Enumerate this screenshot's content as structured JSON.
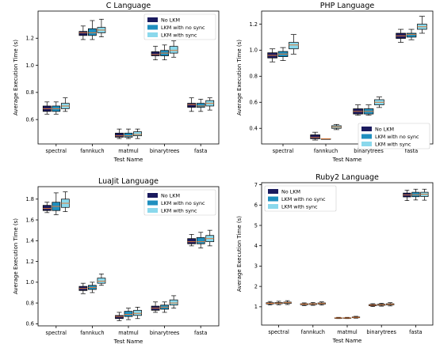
{
  "colors": {
    "no_lkm": "#1a1a5e",
    "lkm_no_sync": "#1f8fbf",
    "lkm_sync": "#8ad8ec",
    "median": "#e07b39",
    "axis": "#000000"
  },
  "chart_data": [
    {
      "type": "box",
      "title": "C Language",
      "xlabel": "Test Name",
      "ylabel": "Average Execution Time (s)",
      "categories": [
        "spectral",
        "fannkuch",
        "matmul",
        "binarytrees",
        "fasta"
      ],
      "ylim": [
        0.42,
        1.4
      ],
      "yticks": [
        0.6,
        0.8,
        1.0,
        1.2
      ],
      "ytick_labels": [
        "0.6",
        "0.8",
        "1.0",
        "1.2"
      ],
      "legend_position": "top-right",
      "series": [
        {
          "name": "No LKM",
          "color": "#1a1a5e",
          "stats": [
            {
              "min": 0.64,
              "q1": 0.66,
              "median": 0.68,
              "q3": 0.7,
              "max": 0.73
            },
            {
              "min": 1.19,
              "q1": 1.22,
              "median": 1.24,
              "q3": 1.25,
              "max": 1.29
            },
            {
              "min": 0.46,
              "q1": 0.47,
              "median": 0.48,
              "q3": 0.5,
              "max": 0.53
            },
            {
              "min": 1.04,
              "q1": 1.07,
              "median": 1.08,
              "q3": 1.1,
              "max": 1.14
            },
            {
              "min": 0.66,
              "q1": 0.69,
              "median": 0.71,
              "q3": 0.72,
              "max": 0.76
            }
          ]
        },
        {
          "name": "LKM with no sync",
          "color": "#1f8fbf",
          "stats": [
            {
              "min": 0.64,
              "q1": 0.66,
              "median": 0.68,
              "q3": 0.7,
              "max": 0.73
            },
            {
              "min": 1.19,
              "q1": 1.22,
              "median": 1.24,
              "q3": 1.27,
              "max": 1.33
            },
            {
              "min": 0.46,
              "q1": 0.47,
              "median": 0.48,
              "q3": 0.5,
              "max": 0.53
            },
            {
              "min": 1.04,
              "q1": 1.07,
              "median": 1.09,
              "q3": 1.11,
              "max": 1.15
            },
            {
              "min": 0.66,
              "q1": 0.69,
              "median": 0.7,
              "q3": 0.72,
              "max": 0.75
            }
          ]
        },
        {
          "name": "LKM with sync",
          "color": "#8ad8ec",
          "stats": [
            {
              "min": 0.66,
              "q1": 0.68,
              "median": 0.7,
              "q3": 0.72,
              "max": 0.76
            },
            {
              "min": 1.21,
              "q1": 1.24,
              "median": 1.26,
              "q3": 1.28,
              "max": 1.34
            },
            {
              "min": 0.46,
              "q1": 0.48,
              "median": 0.49,
              "q3": 0.51,
              "max": 0.53
            },
            {
              "min": 1.06,
              "q1": 1.09,
              "median": 1.11,
              "q3": 1.14,
              "max": 1.18
            },
            {
              "min": 0.67,
              "q1": 0.7,
              "median": 0.72,
              "q3": 0.74,
              "max": 0.76
            }
          ]
        }
      ]
    },
    {
      "type": "box",
      "title": "PHP Language",
      "xlabel": "Test Name",
      "ylabel": "Average Execution Time (s)",
      "categories": [
        "spectral",
        "fannkuch",
        "binarytrees",
        "fasta"
      ],
      "ylim": [
        0.28,
        1.3
      ],
      "yticks": [
        0.4,
        0.6,
        0.8,
        1.0,
        1.2
      ],
      "ytick_labels": [
        "0.4",
        "0.6",
        "0.8",
        "1.0",
        "1.2"
      ],
      "legend_position": "center-right",
      "series": [
        {
          "name": "No LKM",
          "color": "#1a1a5e",
          "stats": [
            {
              "min": 0.91,
              "q1": 0.94,
              "median": 0.96,
              "q3": 0.98,
              "max": 1.01
            },
            {
              "min": 0.31,
              "q1": 0.32,
              "median": 0.33,
              "q3": 0.35,
              "max": 0.37
            },
            {
              "min": 0.5,
              "q1": 0.51,
              "median": 0.53,
              "q3": 0.55,
              "max": 0.58
            },
            {
              "min": 1.06,
              "q1": 1.09,
              "median": 1.11,
              "q3": 1.13,
              "max": 1.16
            }
          ]
        },
        {
          "name": "LKM with no sync",
          "color": "#1f8fbf",
          "stats": [
            {
              "min": 0.92,
              "q1": 0.95,
              "median": 0.97,
              "q3": 0.99,
              "max": 1.02
            },
            {
              "min": 0.32,
              "q1": 0.32,
              "median": 0.32,
              "q3": 0.32,
              "max": 0.32
            },
            {
              "min": 0.5,
              "q1": 0.51,
              "median": 0.53,
              "q3": 0.55,
              "max": 0.58
            },
            {
              "min": 1.08,
              "q1": 1.1,
              "median": 1.12,
              "q3": 1.13,
              "max": 1.16
            }
          ]
        },
        {
          "name": "LKM with sync",
          "color": "#8ad8ec",
          "stats": [
            {
              "min": 0.97,
              "q1": 1.01,
              "median": 1.04,
              "q3": 1.06,
              "max": 1.12
            },
            {
              "min": 0.39,
              "q1": 0.4,
              "median": 0.41,
              "q3": 0.42,
              "max": 0.43
            },
            {
              "min": 0.56,
              "q1": 0.58,
              "median": 0.6,
              "q3": 0.62,
              "max": 0.64
            },
            {
              "min": 1.13,
              "q1": 1.16,
              "median": 1.18,
              "q3": 1.2,
              "max": 1.26
            }
          ]
        }
      ]
    },
    {
      "type": "box",
      "title": "LuaJit Language",
      "xlabel": "Test Name",
      "ylabel": "Average Execution Time (s)",
      "categories": [
        "spectral",
        "fannkuch",
        "matmul",
        "binarytrees",
        "fasta"
      ],
      "ylim": [
        0.58,
        1.92
      ],
      "yticks": [
        0.6,
        0.8,
        1.0,
        1.2,
        1.4,
        1.6,
        1.8
      ],
      "ytick_labels": [
        "0.6",
        "0.8",
        "1.0",
        "1.2",
        "1.4",
        "1.6",
        "1.8"
      ],
      "legend_position": "top-right",
      "series": [
        {
          "name": "No LKM",
          "color": "#1a1a5e",
          "stats": [
            {
              "min": 1.67,
              "q1": 1.69,
              "median": 1.71,
              "q3": 1.74,
              "max": 1.77
            },
            {
              "min": 0.89,
              "q1": 0.92,
              "median": 0.94,
              "q3": 0.96,
              "max": 0.99
            },
            {
              "min": 0.63,
              "q1": 0.65,
              "median": 0.67,
              "q3": 0.68,
              "max": 0.71
            },
            {
              "min": 0.71,
              "q1": 0.73,
              "median": 0.75,
              "q3": 0.77,
              "max": 0.81
            },
            {
              "min": 1.35,
              "q1": 1.37,
              "median": 1.39,
              "q3": 1.42,
              "max": 1.46
            }
          ]
        },
        {
          "name": "LKM with no sync",
          "color": "#1f8fbf",
          "stats": [
            {
              "min": 1.65,
              "q1": 1.69,
              "median": 1.73,
              "q3": 1.77,
              "max": 1.86
            },
            {
              "min": 0.9,
              "q1": 0.93,
              "median": 0.95,
              "q3": 0.97,
              "max": 1.0
            },
            {
              "min": 0.64,
              "q1": 0.67,
              "median": 0.69,
              "q3": 0.72,
              "max": 0.75
            },
            {
              "min": 0.71,
              "q1": 0.74,
              "median": 0.76,
              "q3": 0.78,
              "max": 0.81
            },
            {
              "min": 1.33,
              "q1": 1.37,
              "median": 1.39,
              "q3": 1.43,
              "max": 1.48
            }
          ]
        },
        {
          "name": "LKM with sync",
          "color": "#8ad8ec",
          "stats": [
            {
              "min": 1.68,
              "q1": 1.72,
              "median": 1.76,
              "q3": 1.8,
              "max": 1.87
            },
            {
              "min": 0.97,
              "q1": 0.99,
              "median": 1.01,
              "q3": 1.04,
              "max": 1.08
            },
            {
              "min": 0.65,
              "q1": 0.68,
              "median": 0.7,
              "q3": 0.73,
              "max": 0.76
            },
            {
              "min": 0.75,
              "q1": 0.78,
              "median": 0.8,
              "q3": 0.83,
              "max": 0.87
            },
            {
              "min": 1.35,
              "q1": 1.39,
              "median": 1.42,
              "q3": 1.45,
              "max": 1.5
            }
          ]
        }
      ]
    },
    {
      "type": "box",
      "title": "Ruby2 Language",
      "xlabel": "Test Name",
      "ylabel": "Average Execution Time (s)",
      "categories": [
        "spectral",
        "fannkuch",
        "matmul",
        "binarytrees",
        "fasta"
      ],
      "ylim": [
        0.1,
        7.1
      ],
      "yticks": [
        1,
        2,
        3,
        4,
        5,
        6,
        7
      ],
      "ytick_labels": [
        "1",
        "2",
        "3",
        "4",
        "5",
        "6",
        "7"
      ],
      "legend_position": "top-left",
      "series": [
        {
          "name": "No LKM",
          "color": "#1a1a5e",
          "stats": [
            {
              "min": 1.09,
              "q1": 1.14,
              "median": 1.17,
              "q3": 1.2,
              "max": 1.26
            },
            {
              "min": 1.06,
              "q1": 1.1,
              "median": 1.13,
              "q3": 1.15,
              "max": 1.19
            },
            {
              "min": 0.42,
              "q1": 0.44,
              "median": 0.45,
              "q3": 0.46,
              "max": 0.48
            },
            {
              "min": 1.01,
              "q1": 1.05,
              "median": 1.08,
              "q3": 1.11,
              "max": 1.15
            },
            {
              "min": 6.22,
              "q1": 6.4,
              "median": 6.5,
              "q3": 6.59,
              "max": 6.73
            }
          ]
        },
        {
          "name": "LKM with no sync",
          "color": "#1f8fbf",
          "stats": [
            {
              "min": 1.1,
              "q1": 1.15,
              "median": 1.18,
              "q3": 1.21,
              "max": 1.27
            },
            {
              "min": 1.07,
              "q1": 1.11,
              "median": 1.14,
              "q3": 1.16,
              "max": 1.21
            },
            {
              "min": 0.42,
              "q1": 0.44,
              "median": 0.45,
              "q3": 0.46,
              "max": 0.48
            },
            {
              "min": 1.03,
              "q1": 1.07,
              "median": 1.1,
              "q3": 1.13,
              "max": 1.17
            },
            {
              "min": 6.25,
              "q1": 6.41,
              "median": 6.51,
              "q3": 6.63,
              "max": 6.78
            }
          ]
        },
        {
          "name": "LKM with sync",
          "color": "#8ad8ec",
          "stats": [
            {
              "min": 1.11,
              "q1": 1.16,
              "median": 1.2,
              "q3": 1.23,
              "max": 1.3
            },
            {
              "min": 1.08,
              "q1": 1.13,
              "median": 1.16,
              "q3": 1.19,
              "max": 1.24
            },
            {
              "min": 0.44,
              "q1": 0.46,
              "median": 0.48,
              "q3": 0.5,
              "max": 0.53
            },
            {
              "min": 1.04,
              "q1": 1.09,
              "median": 1.12,
              "q3": 1.15,
              "max": 1.2
            },
            {
              "min": 6.24,
              "q1": 6.42,
              "median": 6.53,
              "q3": 6.63,
              "max": 6.78
            }
          ]
        }
      ]
    }
  ]
}
